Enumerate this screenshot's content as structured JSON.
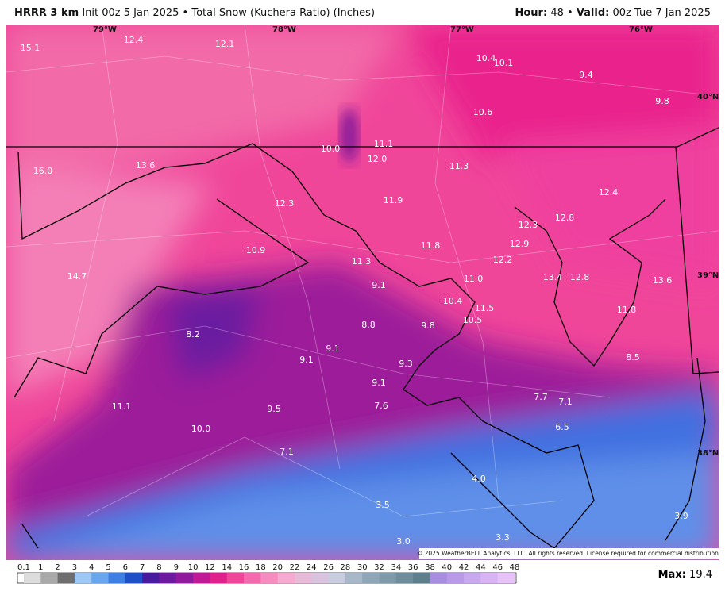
{
  "header": {
    "model": "HRRR 3 km",
    "description": "Init 00z 5 Jan 2025 • Total Snow (Kuchera Ratio) (Inches)",
    "hour_label": "Hour:",
    "hour": "48",
    "separator": "•",
    "valid_label": "Valid:",
    "valid": "00z Tue 7 Jan 2025"
  },
  "grid_labels": [
    "79°W",
    "78°W",
    "77°W",
    "76°W",
    "40°N",
    "39°N",
    "38°N"
  ],
  "map_labels": [
    "15.1",
    "12.4",
    "12.1",
    "10.4",
    "10.1",
    "9.4",
    "9.8",
    "10.6",
    "10.0",
    "11.1",
    "12.0",
    "11.3",
    "16.0",
    "13.6",
    "12.4",
    "12.3",
    "11.9",
    "12.8",
    "12.3",
    "12.9",
    "11.8",
    "10.9",
    "11.3",
    "12.2",
    "14.7",
    "11.0",
    "13.4",
    "12.8",
    "13.6",
    "9.1",
    "10.4",
    "11.5",
    "11.8",
    "10.5",
    "8.8",
    "9.8",
    "8.2",
    "9.1",
    "9.1",
    "8.5",
    "9.3",
    "9.1",
    "7.7",
    "7.1",
    "11.1",
    "7.6",
    "9.5",
    "6.5",
    "10.0",
    "7.1",
    "4.0",
    "3.5",
    "3.9",
    "3.0",
    "3.3"
  ],
  "copyright": "© 2025 WeatherBELL Analytics, LLC. All rights reserved. License required for commercial distribution.",
  "legend": {
    "labels": [
      "0.1",
      "1",
      "2",
      "3",
      "4",
      "5",
      "6",
      "7",
      "8",
      "9",
      "10",
      "12",
      "14",
      "16",
      "18",
      "20",
      "22",
      "24",
      "26",
      "28",
      "30",
      "32",
      "34",
      "36",
      "38",
      "40",
      "42",
      "44",
      "46",
      "48"
    ],
    "colors": [
      "#dcdcdc",
      "#a9a9a9",
      "#6e6e6e",
      "#9ec8f5",
      "#6aa6ee",
      "#3f7fe4",
      "#1f4fc8",
      "#4a1a9e",
      "#6e1aa0",
      "#8f1a9c",
      "#c01a96",
      "#e0208c",
      "#f0469a",
      "#f56aae",
      "#f78cc0",
      "#f7aad0",
      "#e9b9d8",
      "#d9c3de",
      "#c8cde0",
      "#a9b8c8",
      "#8fa7b6",
      "#7f9aa8",
      "#6f8c9a",
      "#5f7f8c",
      "#a88ee0",
      "#b99ae8",
      "#c8a8ee",
      "#d8b4f4",
      "#e6c2f8"
    ]
  },
  "max": {
    "label": "Max:",
    "value": "19.4"
  }
}
